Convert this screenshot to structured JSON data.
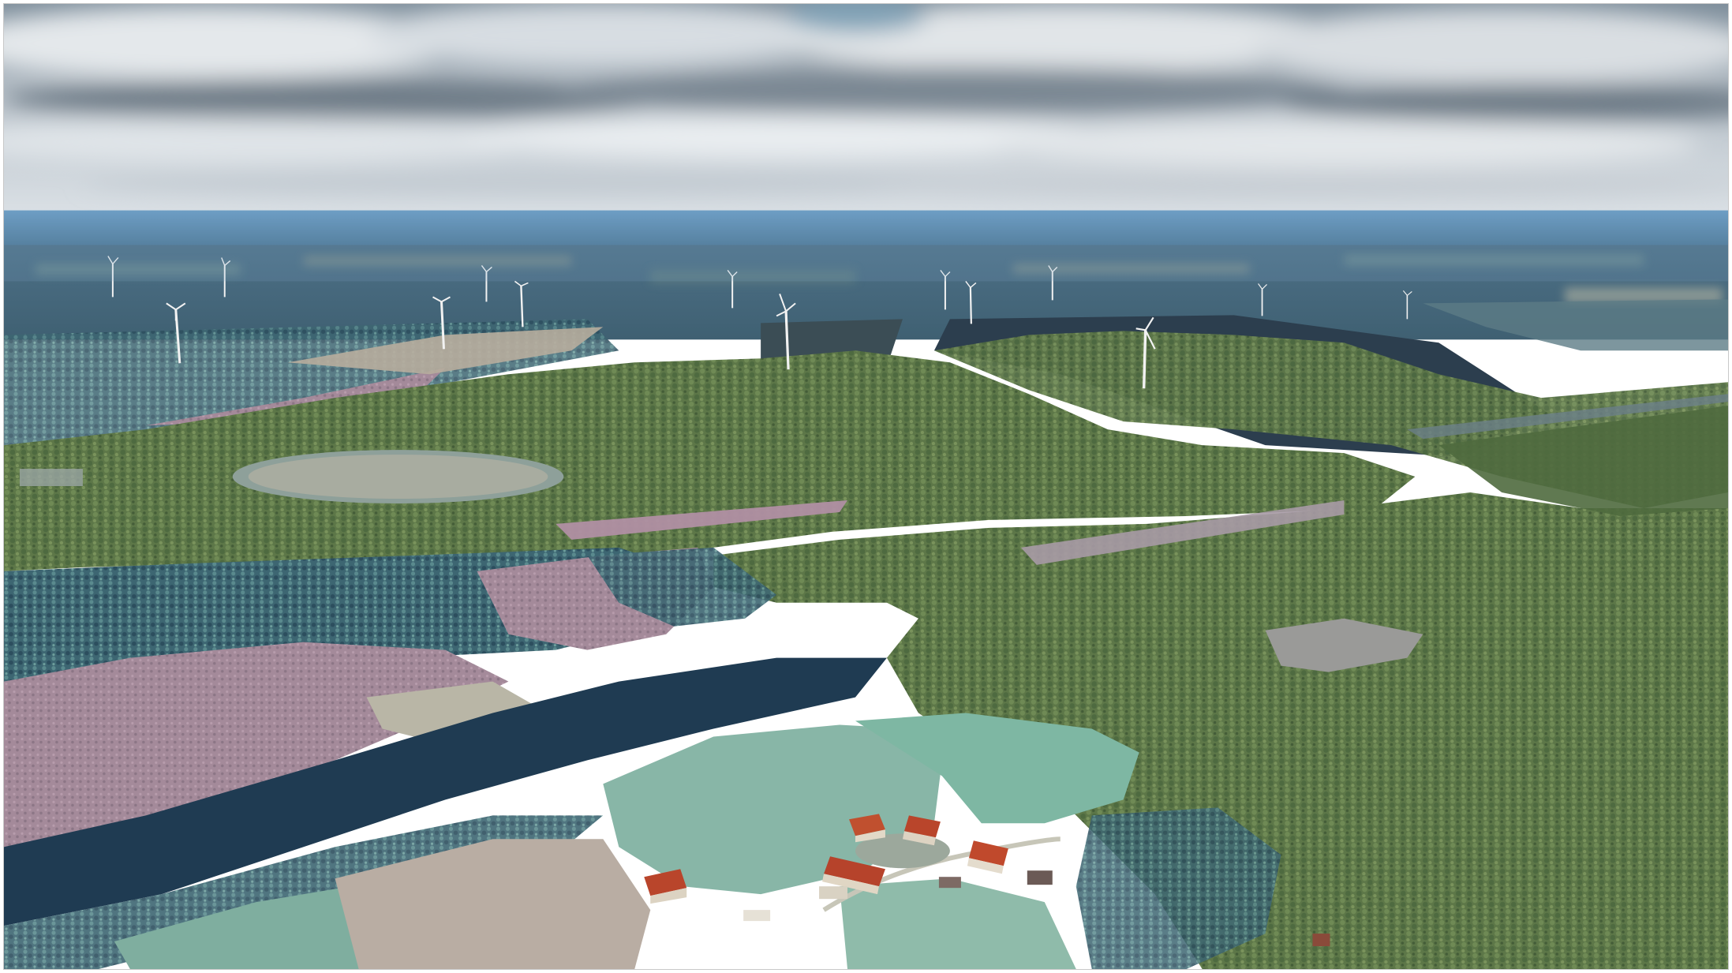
{
  "scene": {
    "kind": "aerial-landscape-render",
    "subject": "wind-turbines-over-forest-and-farmland",
    "turbine_count": 14,
    "building_count": 7,
    "colors": {
      "sky_top": "#8a9aa8",
      "cloud_light": "#e8ecef",
      "cloud_dark": "#6f7c88",
      "horizon_blue": "#5f93bd",
      "far_land": "#4a6a7e",
      "forest": "#5f7a4a",
      "forest_dark": "#3f5a3a",
      "field_pink": "#a88a9e",
      "field_green": "#86b9a6",
      "shadow_teal": "#233f55",
      "roof_red": "#b0452e",
      "turbine_white": "#f2f2f2"
    }
  }
}
